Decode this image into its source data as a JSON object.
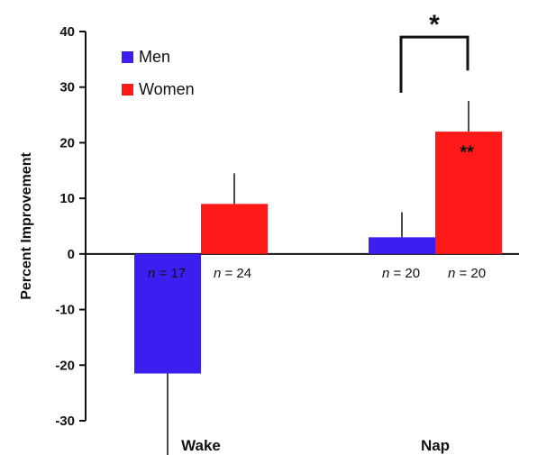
{
  "chart_data": {
    "type": "bar",
    "ylabel": "Percent Improvement",
    "ylim": [
      -30,
      40
    ],
    "yticks": [
      "-30",
      "-20",
      "-10",
      "0",
      "10",
      "20",
      "30",
      "40"
    ],
    "categories": [
      "Wake",
      "Nap"
    ],
    "series": [
      {
        "name": "Men",
        "color": "#3a1ff0",
        "values": [
          -21.5,
          3
        ],
        "errors": [
          15.5,
          4.5
        ],
        "n_labels": [
          "n = 17",
          "n = 20"
        ]
      },
      {
        "name": "Women",
        "color": "#ff1a1a",
        "values": [
          9,
          22
        ],
        "errors": [
          5.5,
          5.5
        ],
        "n_labels": [
          "n = 24",
          "n = 20"
        ]
      }
    ],
    "annotations": {
      "significance_bracket": {
        "category": "Nap",
        "label": "*"
      },
      "bar_label": {
        "category": "Nap",
        "series": "Women",
        "label": "**"
      }
    },
    "legend": "top-left",
    "grid": false
  }
}
